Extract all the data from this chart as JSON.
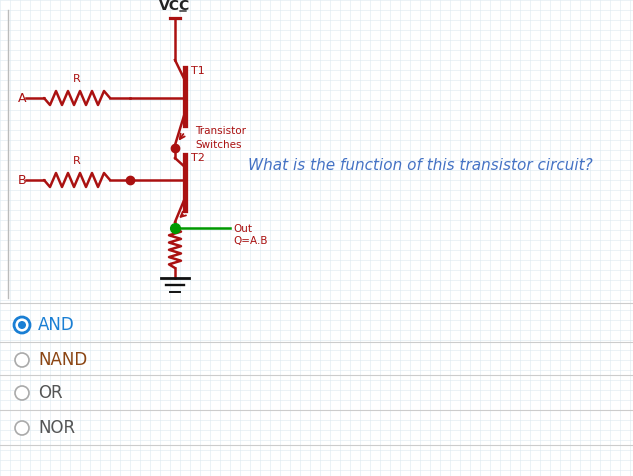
{
  "bg": "#ffffff",
  "grid_color": "#dce8f0",
  "cc": "#aa1111",
  "green": "#009900",
  "q_color": "#4472C4",
  "q_text": "What is the function of this transistor circuit?",
  "trans_label": "Transistor\nSwitches",
  "vcc_text": "VCC",
  "out_text": "Out\nQ=A.B",
  "t1_label": "T1",
  "t2_label": "T2",
  "r_label": "R",
  "a_label": "A",
  "b_label": "B",
  "options": [
    "AND",
    "NAND",
    "OR",
    "NOR"
  ],
  "selected": 0,
  "sel_color": "#1a7fd4",
  "unsel_color": "#555555",
  "sep_color": "#cccccc",
  "option_text_colors": [
    "#1a7fd4",
    "#8B4513",
    "#555555",
    "#555555"
  ]
}
